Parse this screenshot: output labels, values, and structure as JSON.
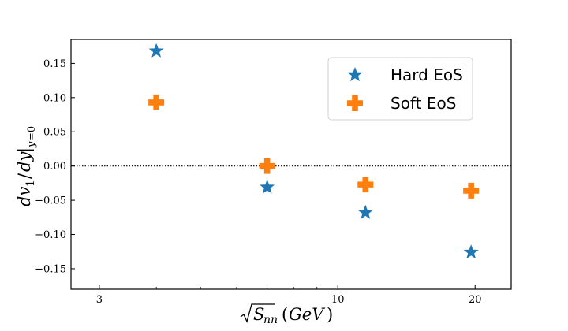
{
  "chart_data": {
    "type": "scatter",
    "xscale": "log",
    "xlim": [
      2.6,
      24
    ],
    "ylim": [
      -0.18,
      0.185
    ],
    "xticks": [
      {
        "value": 3,
        "label": "3"
      },
      {
        "value": 10,
        "label": "10"
      },
      {
        "value": 20,
        "label": "20"
      }
    ],
    "yticks": [
      {
        "value": 0.15,
        "label": "0.15"
      },
      {
        "value": 0.1,
        "label": "0.10"
      },
      {
        "value": 0.05,
        "label": "0.05"
      },
      {
        "value": 0.0,
        "label": "0.00"
      },
      {
        "value": -0.05,
        "label": "−0.05"
      },
      {
        "value": -0.1,
        "label": "−0.10"
      },
      {
        "value": -0.15,
        "label": "−0.15"
      }
    ],
    "xlabel": "√S_nn (GeV)",
    "ylabel": "dv₁/dy|_{y=0}",
    "reference_line": {
      "y": 0,
      "style": "dotted"
    },
    "legend_position": "top-right",
    "series": [
      {
        "name": "Hard EoS",
        "marker": "star",
        "color": "#1f77b4",
        "points": [
          {
            "x": 4.0,
            "y": 0.168
          },
          {
            "x": 7.0,
            "y": -0.031
          },
          {
            "x": 11.5,
            "y": -0.068
          },
          {
            "x": 19.6,
            "y": -0.126
          }
        ]
      },
      {
        "name": "Soft EoS",
        "marker": "plus",
        "color": "#ff7f0e",
        "points": [
          {
            "x": 4.0,
            "y": 0.093
          },
          {
            "x": 7.0,
            "y": 0.0
          },
          {
            "x": 11.5,
            "y": -0.027
          },
          {
            "x": 19.6,
            "y": -0.036
          }
        ]
      }
    ]
  }
}
